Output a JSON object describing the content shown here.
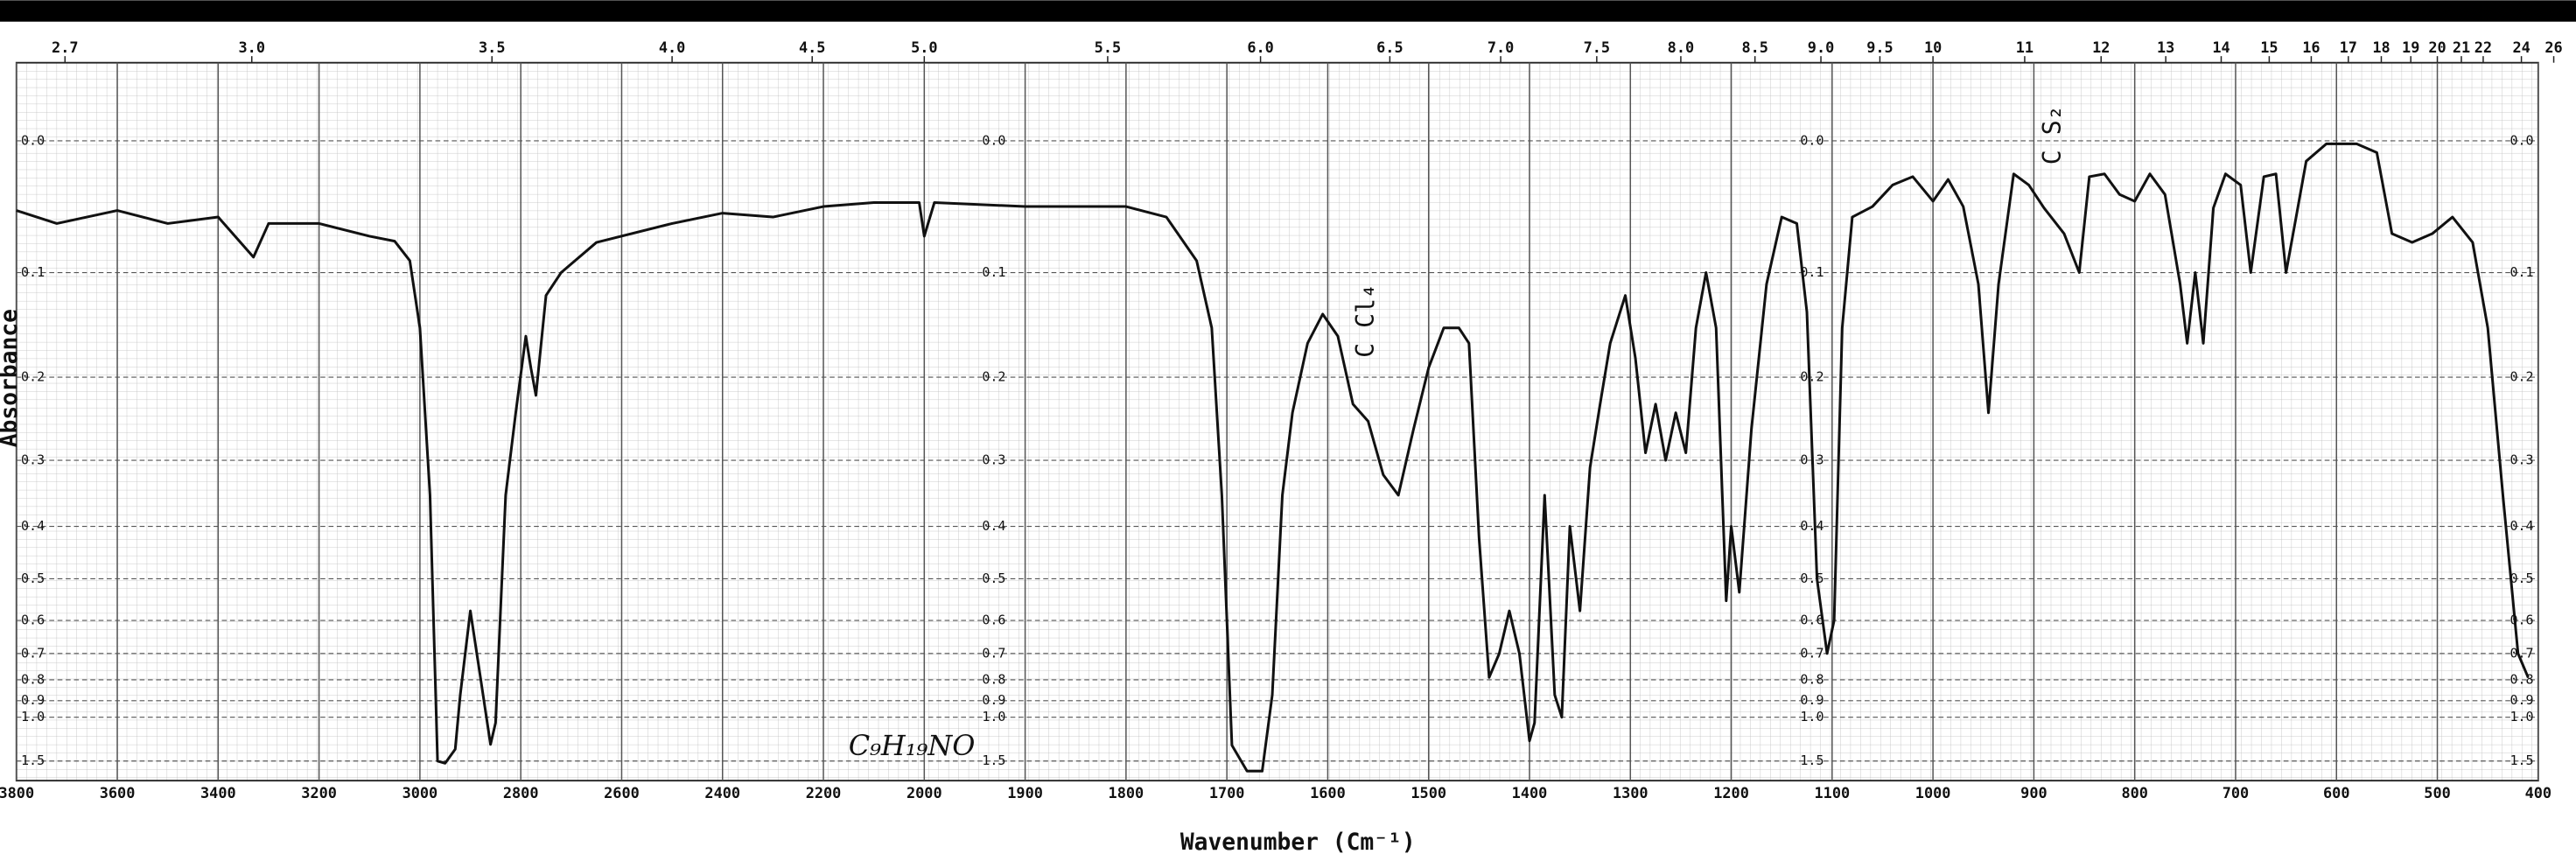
{
  "chart_data": {
    "type": "line",
    "xlabel": "Wavenumber (Cm⁻¹)",
    "ylabel": "Absorbance",
    "color": "#111111",
    "y_scale": "transmittance",
    "grid": true,
    "annotations": [
      "C Cl₄",
      "C S₂",
      "C₉H₁₉NO"
    ],
    "xlim": [
      3800,
      400
    ],
    "xticks": [
      3800,
      3600,
      3400,
      3200,
      3000,
      2800,
      2600,
      2400,
      2200,
      2000,
      1900,
      1800,
      1700,
      1600,
      1500,
      1400,
      1300,
      1200,
      1100,
      1000,
      900,
      800,
      700,
      600,
      500,
      400
    ],
    "x2ticks": [
      2.7,
      {
        "value": 3,
        "label": "3.0"
      },
      3.5,
      {
        "value": 4,
        "label": "4.0"
      },
      4.5,
      {
        "value": 5,
        "label": "5.0"
      },
      5.5,
      {
        "value": 6,
        "label": "6.0"
      },
      6.5,
      {
        "value": 7,
        "label": "7.0"
      },
      7.5,
      {
        "value": 8,
        "label": "8.0"
      },
      8.5,
      {
        "value": 9,
        "label": "9.0"
      },
      9.5,
      10,
      11,
      12,
      13,
      14,
      15,
      16,
      17,
      18,
      19,
      20,
      21,
      22,
      24,
      26
    ],
    "ylim": [
      -0.05,
      3
    ],
    "yticks": [
      {
        "value": 0,
        "label": "0.0"
      },
      0.1,
      0.2,
      0.3,
      0.4,
      0.5,
      0.6,
      0.7,
      0.8,
      0.9,
      {
        "value": 1,
        "label": "1.0"
      },
      1.5
    ],
    "x": [
      3800,
      3720,
      3600,
      3500,
      3400,
      3330,
      3300,
      3200,
      3100,
      3050,
      3020,
      3000,
      2980,
      2965,
      2950,
      2930,
      2920,
      2900,
      2880,
      2860,
      2850,
      2830,
      2810,
      2790,
      2780,
      2770,
      2750,
      2720,
      2650,
      2500,
      2400,
      2300,
      2200,
      2100,
      2010,
      2000,
      1990,
      1900,
      1800,
      1760,
      1730,
      1715,
      1705,
      1695,
      1680,
      1665,
      1655,
      1645,
      1635,
      1620,
      1605,
      1590,
      1575,
      1560,
      1545,
      1530,
      1515,
      1500,
      1485,
      1470,
      1460,
      1450,
      1440,
      1430,
      1420,
      1410,
      1400,
      1395,
      1385,
      1375,
      1368,
      1360,
      1350,
      1340,
      1330,
      1320,
      1305,
      1295,
      1285,
      1275,
      1265,
      1255,
      1245,
      1235,
      1225,
      1215,
      1205,
      1200,
      1192,
      1180,
      1165,
      1150,
      1135,
      1125,
      1115,
      1105,
      1098,
      1090,
      1080,
      1060,
      1040,
      1020,
      1000,
      985,
      970,
      955,
      945,
      935,
      920,
      905,
      890,
      870,
      855,
      845,
      830,
      815,
      800,
      785,
      770,
      755,
      748,
      740,
      732,
      722,
      710,
      695,
      685,
      672,
      660,
      650,
      640,
      630,
      610,
      580,
      560,
      545,
      525,
      505,
      485,
      465,
      450,
      435,
      420,
      410
    ],
    "values": [
      0.05,
      0.06,
      0.05,
      0.06,
      0.055,
      0.087,
      0.06,
      0.06,
      0.07,
      0.074,
      0.09,
      0.15,
      0.35,
      1.5,
      1.55,
      1.3,
      0.87,
      0.575,
      0.79,
      1.24,
      1.04,
      0.35,
      0.24,
      0.158,
      0.19,
      0.22,
      0.12,
      0.1,
      0.075,
      0.06,
      0.052,
      0.055,
      0.047,
      0.044,
      0.044,
      0.07,
      0.044,
      0.047,
      0.047,
      0.055,
      0.09,
      0.15,
      0.35,
      1.25,
      1.8,
      1.8,
      0.87,
      0.35,
      0.24,
      0.165,
      0.137,
      0.158,
      0.23,
      0.25,
      0.32,
      0.35,
      0.26,
      0.19,
      0.15,
      0.15,
      0.165,
      0.42,
      0.79,
      0.7,
      0.575,
      0.7,
      1.2,
      1.04,
      0.35,
      0.87,
      1.0,
      0.4,
      0.575,
      0.31,
      0.23,
      0.165,
      0.12,
      0.18,
      0.29,
      0.23,
      0.3,
      0.24,
      0.29,
      0.15,
      0.1,
      0.15,
      0.55,
      0.4,
      0.53,
      0.26,
      0.11,
      0.055,
      0.06,
      0.135,
      0.5,
      0.7,
      0.6,
      0.15,
      0.055,
      0.047,
      0.031,
      0.025,
      0.043,
      0.027,
      0.047,
      0.11,
      0.24,
      0.11,
      0.023,
      0.031,
      0.048,
      0.068,
      0.1,
      0.025,
      0.023,
      0.038,
      0.043,
      0.023,
      0.038,
      0.11,
      0.165,
      0.1,
      0.165,
      0.048,
      0.023,
      0.031,
      0.1,
      0.025,
      0.023,
      0.1,
      0.055,
      0.014,
      0.002,
      0.002,
      0.008,
      0.068,
      0.075,
      0.068,
      0.055,
      0.075,
      0.15,
      0.35,
      0.7,
      0.79
    ]
  }
}
